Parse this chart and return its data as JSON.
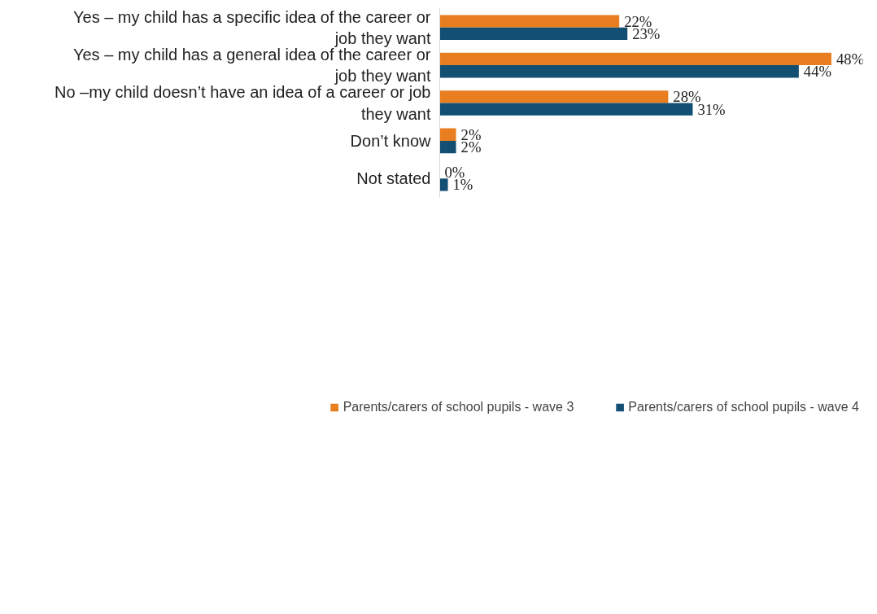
{
  "chart_data": {
    "type": "bar",
    "orientation": "horizontal",
    "data_labels": true,
    "legend": "bottom",
    "grid": false,
    "categories": [
      "Yes – my child has a specific idea of the career or job they want",
      "Yes – my child has a general idea of the career or job they want",
      "No –my child doesn’t have an idea of a career or job they want",
      "Don’t know",
      "Not stated"
    ],
    "series": [
      {
        "name": "Parents/carers of school pupils - wave 3",
        "color": "#e87e1f",
        "values": [
          22,
          48,
          28,
          2,
          0
        ],
        "value_labels": [
          "22%",
          "48%",
          "28%",
          "2%",
          "0%"
        ]
      },
      {
        "name": "Parents/carers of school pupils - wave 4",
        "color": "#124f73",
        "values": [
          23,
          44,
          31,
          2,
          1
        ],
        "value_labels": [
          "23%",
          "44%",
          "31%",
          "2%",
          "1%"
        ]
      }
    ]
  }
}
